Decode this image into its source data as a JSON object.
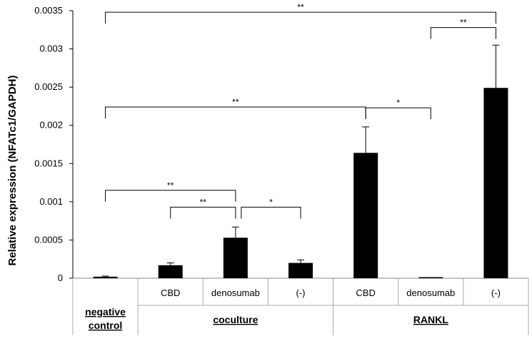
{
  "chart_data": {
    "type": "bar",
    "ylabel": "Relative expression (NFATc1/GAPDH)",
    "ylim": [
      0,
      0.0035
    ],
    "yticks": [
      0,
      0.0005,
      0.001,
      0.0015,
      0.002,
      0.0025,
      0.003,
      0.0035
    ],
    "ytick_labels": [
      "0",
      "0.0005",
      "0.001",
      "0.0015",
      "0.002",
      "0.0025",
      "0.003",
      "0.0035"
    ],
    "categories": [
      "",
      "CBD",
      "denosumab",
      "(-)",
      "CBD",
      "denosumab",
      "(-)"
    ],
    "values": [
      2e-05,
      0.00017,
      0.00053,
      0.0002,
      0.00164,
      5e-06,
      0.00249
    ],
    "errors": [
      8e-06,
      3e-05,
      0.00014,
      4e-05,
      0.00034,
      4e-06,
      0.00056
    ],
    "bar_color": "#000000",
    "groups": [
      {
        "name": "negative control",
        "lines": [
          "negative",
          "control"
        ],
        "from": 0,
        "to": 0
      },
      {
        "name": "coculture",
        "lines": [
          "coculture"
        ],
        "from": 1,
        "to": 3
      },
      {
        "name": "RANKL",
        "lines": [
          "RANKL"
        ],
        "from": 4,
        "to": 6
      }
    ],
    "significance": [
      {
        "from": 0,
        "to": 6,
        "y": 0.00348,
        "label": "**"
      },
      {
        "from": 5,
        "to": 6,
        "y": 0.00328,
        "label": "**"
      },
      {
        "from": 0,
        "to": 4,
        "y": 0.00224,
        "label": "**"
      },
      {
        "from": 4,
        "to": 5,
        "y": 0.00223,
        "label": "*"
      },
      {
        "from": 0,
        "to": 2,
        "y": 0.00115,
        "label": "**"
      },
      {
        "from": 1,
        "to": 2,
        "y": 0.00093,
        "label": "**"
      },
      {
        "from": 2,
        "to": 3,
        "y": 0.00093,
        "label": "*"
      }
    ]
  }
}
